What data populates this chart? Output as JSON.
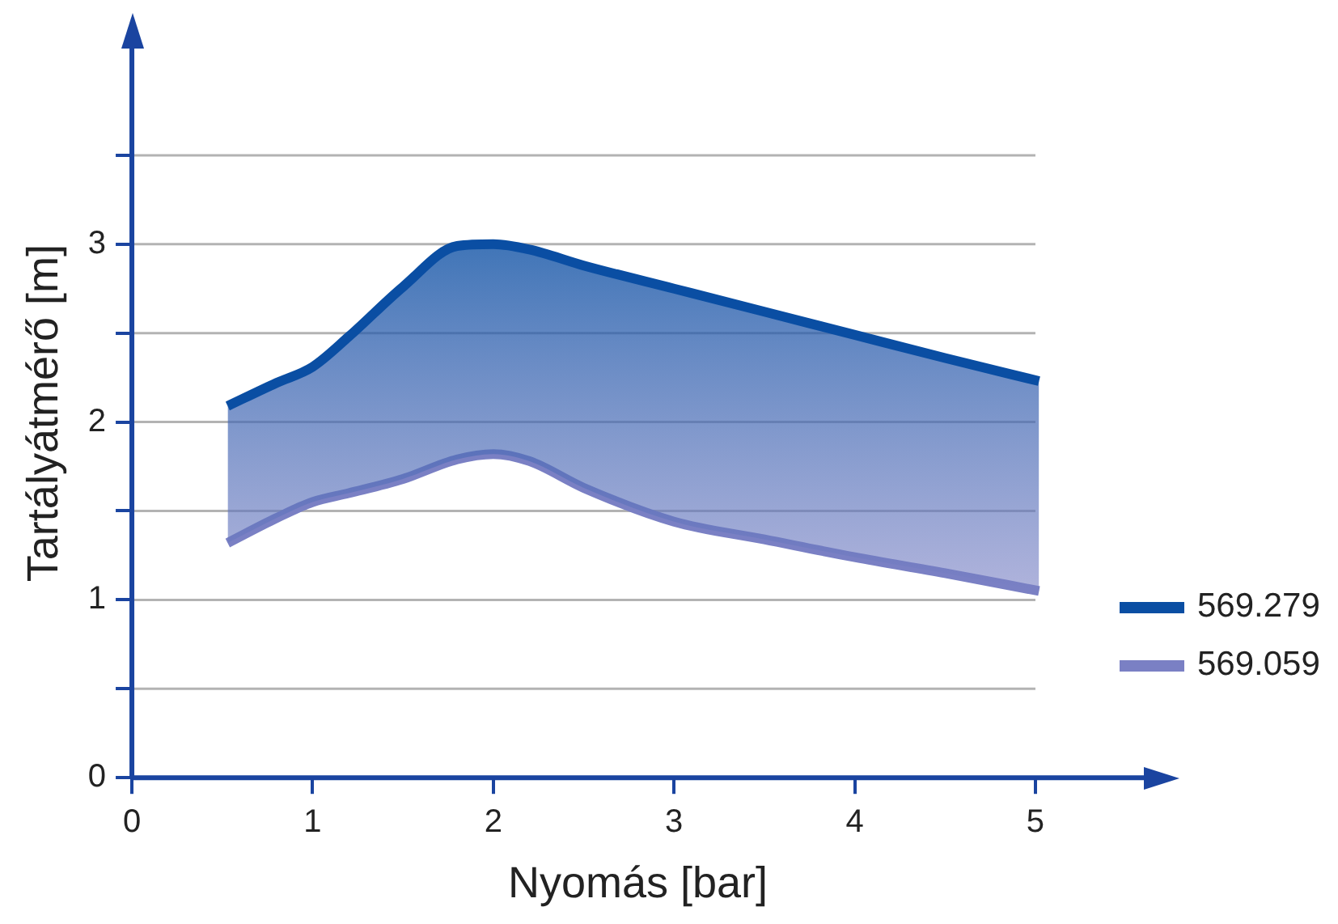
{
  "chart_data": {
    "type": "line",
    "xlabel": "Nyomás [bar]",
    "ylabel": "Tartályátmérő [m]",
    "xlim": [
      0,
      5.6
    ],
    "xticks": [
      0,
      1,
      2,
      3,
      4,
      5
    ],
    "ylim": [
      0,
      4.1
    ],
    "yticks": [
      0,
      {
        "value": 0.5,
        "label": null
      },
      1,
      {
        "value": 1.5,
        "label": null
      },
      2,
      {
        "value": 2.5,
        "label": null
      },
      3,
      {
        "value": 3.5,
        "label": null
      }
    ],
    "x": [
      0.53,
      0.8,
      1,
      1.2,
      1.5,
      1.8,
      2,
      2.2,
      2.5,
      3,
      3.5,
      4,
      4.5,
      5.02
    ],
    "grid": "y",
    "legend": "right",
    "marker": "none",
    "series": [
      {
        "name": "569.279",
        "type": "area",
        "color": "#0a4ea3",
        "values": [
          2.09,
          2.22,
          2.31,
          2.48,
          2.76,
          2.99,
          3.0,
          2.97,
          2.88,
          2.75,
          2.62,
          2.49,
          2.36,
          2.23
        ]
      },
      {
        "name": "569.059",
        "color": "#7a80c4",
        "values": [
          1.32,
          1.46,
          1.55,
          1.6,
          1.68,
          1.79,
          1.82,
          1.78,
          1.63,
          1.44,
          1.34,
          1.24,
          1.15,
          1.05
        ]
      }
    ]
  }
}
